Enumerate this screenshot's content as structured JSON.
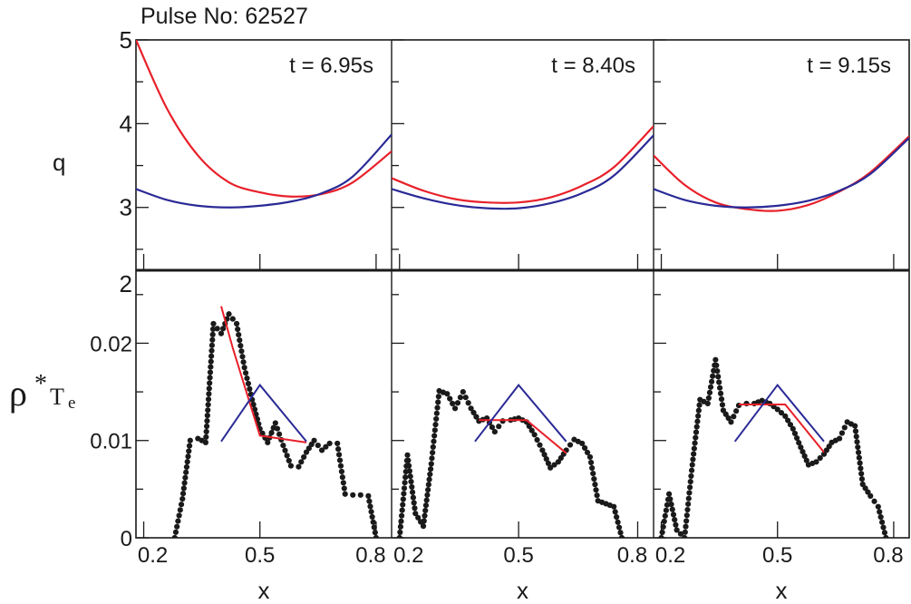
{
  "header": {
    "pulse_label": "Pulse No: 62527"
  },
  "axes": {
    "x_label": "x",
    "top_ylabel": "q",
    "bottom_ylabel_rho": "ρ",
    "bottom_ylabel_star": "*",
    "bottom_ylabel_T": "T",
    "bottom_ylabel_sub": "e"
  },
  "colors": {
    "red": "#e8202a",
    "blue": "#2a2a96",
    "black": "#1a1a1a"
  },
  "chart_data": [
    {
      "type": "line",
      "panel": "q-profiles",
      "ylabel": "q",
      "xlim": [
        0.18,
        0.84
      ],
      "ylim": [
        2.25,
        5.0
      ],
      "yticks": [
        3,
        4,
        5
      ],
      "yticklabels": [
        "3",
        "4",
        "5"
      ],
      "times": [
        "t = 6.95s",
        "t = 8.40s",
        "t = 9.15s"
      ],
      "x": [
        0.18,
        0.26,
        0.34,
        0.42,
        0.5,
        0.58,
        0.66,
        0.74,
        0.84
      ],
      "series": [
        {
          "color": "red",
          "panel": 0,
          "values": [
            5.0,
            4.18,
            3.62,
            3.3,
            3.18,
            3.13,
            3.16,
            3.3,
            3.67
          ]
        },
        {
          "color": "blue",
          "panel": 0,
          "values": [
            3.22,
            3.09,
            3.02,
            3.0,
            3.02,
            3.07,
            3.17,
            3.37,
            3.87
          ]
        },
        {
          "color": "red",
          "panel": 1,
          "values": [
            3.35,
            3.2,
            3.1,
            3.06,
            3.06,
            3.12,
            3.26,
            3.48,
            3.97
          ]
        },
        {
          "color": "blue",
          "panel": 1,
          "values": [
            3.22,
            3.11,
            3.03,
            2.99,
            2.99,
            3.05,
            3.17,
            3.38,
            3.86
          ]
        },
        {
          "color": "red",
          "panel": 2,
          "values": [
            3.62,
            3.27,
            3.06,
            2.98,
            2.96,
            3.03,
            3.19,
            3.42,
            3.85
          ]
        },
        {
          "color": "blue",
          "panel": 2,
          "values": [
            3.22,
            3.09,
            3.02,
            3.0,
            3.02,
            3.08,
            3.2,
            3.4,
            3.83
          ]
        }
      ]
    },
    {
      "type": "line",
      "panel": "rho-star-Te",
      "xlabel": "x",
      "xlim": [
        0.18,
        0.84
      ],
      "xticks": [
        0.2,
        0.5,
        0.8
      ],
      "xticklabels": [
        "0.2",
        "0.5",
        "0.8"
      ],
      "ylim": [
        0,
        0.0275
      ],
      "yticks": [
        0,
        0.01,
        0.02
      ],
      "yticklabels": [
        "0",
        "0.01",
        "0.02"
      ],
      "top_tick_label": "2",
      "series": [
        {
          "color": "black",
          "style": "dotted",
          "panel": 0,
          "x": [
            0.28,
            0.3,
            0.32,
            0.34,
            0.36,
            0.38,
            0.4,
            0.42,
            0.44,
            0.46,
            0.48,
            0.5,
            0.52,
            0.54,
            0.56,
            0.58,
            0.6,
            0.62,
            0.64,
            0.66,
            0.68,
            0.7,
            0.72,
            0.74,
            0.76,
            0.78,
            0.8
          ],
          "values": [
            0.0,
            0.004,
            0.01,
            0.0102,
            0.0098,
            0.022,
            0.021,
            0.023,
            0.022,
            0.0175,
            0.0142,
            0.0112,
            0.0098,
            0.0118,
            0.0095,
            0.0074,
            0.0073,
            0.0088,
            0.01,
            0.009,
            0.0097,
            0.0097,
            0.0045,
            0.0044,
            0.0044,
            0.0043,
            0.0
          ]
        },
        {
          "color": "red",
          "panel": 0,
          "x": [
            0.4,
            0.43,
            0.5,
            0.62
          ],
          "values": [
            0.0238,
            0.0195,
            0.0105,
            0.0098
          ]
        },
        {
          "color": "blue",
          "panel": 0,
          "x": [
            0.4,
            0.5,
            0.62
          ],
          "values": [
            0.0099,
            0.0157,
            0.0099
          ]
        },
        {
          "color": "black",
          "style": "dotted",
          "panel": 1,
          "x": [
            0.2,
            0.22,
            0.24,
            0.26,
            0.28,
            0.3,
            0.32,
            0.34,
            0.36,
            0.38,
            0.4,
            0.42,
            0.44,
            0.46,
            0.48,
            0.5,
            0.52,
            0.54,
            0.56,
            0.58,
            0.6,
            0.62,
            0.64,
            0.66,
            0.68,
            0.7,
            0.72,
            0.74,
            0.76
          ],
          "values": [
            0.0,
            0.0085,
            0.0025,
            0.0012,
            0.0076,
            0.0151,
            0.0148,
            0.0133,
            0.015,
            0.0133,
            0.012,
            0.0123,
            0.0109,
            0.012,
            0.0121,
            0.0123,
            0.0119,
            0.0106,
            0.009,
            0.0072,
            0.0078,
            0.009,
            0.0101,
            0.0097,
            0.0083,
            0.0038,
            0.0035,
            0.0032,
            0.0
          ]
        },
        {
          "color": "red",
          "panel": 1,
          "x": [
            0.4,
            0.52,
            0.62
          ],
          "values": [
            0.0121,
            0.0121,
            0.0087
          ]
        },
        {
          "color": "blue",
          "panel": 1,
          "x": [
            0.39,
            0.5,
            0.62
          ],
          "values": [
            0.0099,
            0.0157,
            0.0099
          ]
        },
        {
          "color": "black",
          "style": "dotted",
          "panel": 2,
          "x": [
            0.2,
            0.22,
            0.24,
            0.26,
            0.28,
            0.3,
            0.32,
            0.34,
            0.36,
            0.38,
            0.4,
            0.42,
            0.44,
            0.46,
            0.48,
            0.5,
            0.52,
            0.54,
            0.56,
            0.58,
            0.6,
            0.62,
            0.64,
            0.66,
            0.68,
            0.7,
            0.72,
            0.74,
            0.76,
            0.78
          ],
          "values": [
            0.0,
            0.0045,
            0.0008,
            0.0,
            0.0075,
            0.0142,
            0.0138,
            0.0183,
            0.0131,
            0.0119,
            0.0136,
            0.0138,
            0.0138,
            0.0141,
            0.0138,
            0.0132,
            0.0125,
            0.0112,
            0.0093,
            0.0075,
            0.0078,
            0.0086,
            0.0098,
            0.0102,
            0.0119,
            0.0115,
            0.0055,
            0.0043,
            0.0032,
            0.0
          ]
        },
        {
          "color": "red",
          "panel": 2,
          "x": [
            0.4,
            0.52,
            0.62
          ],
          "values": [
            0.0137,
            0.0137,
            0.0088
          ]
        },
        {
          "color": "blue",
          "panel": 2,
          "x": [
            0.39,
            0.5,
            0.62
          ],
          "values": [
            0.0099,
            0.0157,
            0.0099
          ]
        }
      ]
    }
  ]
}
